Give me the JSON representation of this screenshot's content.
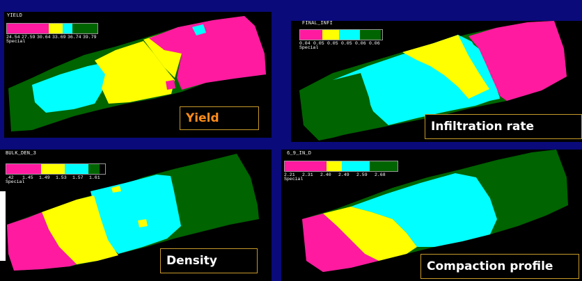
{
  "colors": {
    "magenta": "#ff1aa0",
    "yellow": "#ffff00",
    "cyan": "#00ffff",
    "green": "#006400",
    "background": "#000000",
    "frame": "#0a0a7a",
    "caption_orange": "#ff8c1a",
    "caption_white": "#ffffff"
  },
  "panels": {
    "yield": {
      "map_title": "YIELD",
      "legend_ticks": [
        "24.54",
        "27.59",
        "30.64",
        "33.69",
        "36.74",
        "39.79"
      ],
      "legend_special": "Special",
      "caption": "Yield"
    },
    "infiltration": {
      "map_title": "FINAL_INFI",
      "legend_ticks": [
        "0.04",
        "0.05",
        "0.05",
        "0.05",
        "0.06",
        "0.06"
      ],
      "legend_special": "Special",
      "caption": "Infiltration rate"
    },
    "density": {
      "map_title": "BULK_DEN_3",
      "legend_ticks": [
        ".42",
        "1.45",
        "1.49",
        "1.53",
        "1.57",
        "1.61"
      ],
      "legend_special": "Special",
      "caption": "Density"
    },
    "compaction": {
      "map_title": "6_9_IN_D",
      "legend_ticks": [
        "2.21",
        "2.31",
        "2.40",
        "2.49",
        "2.59",
        "2.68"
      ],
      "legend_special": "Special",
      "caption": "Compaction profile"
    }
  }
}
